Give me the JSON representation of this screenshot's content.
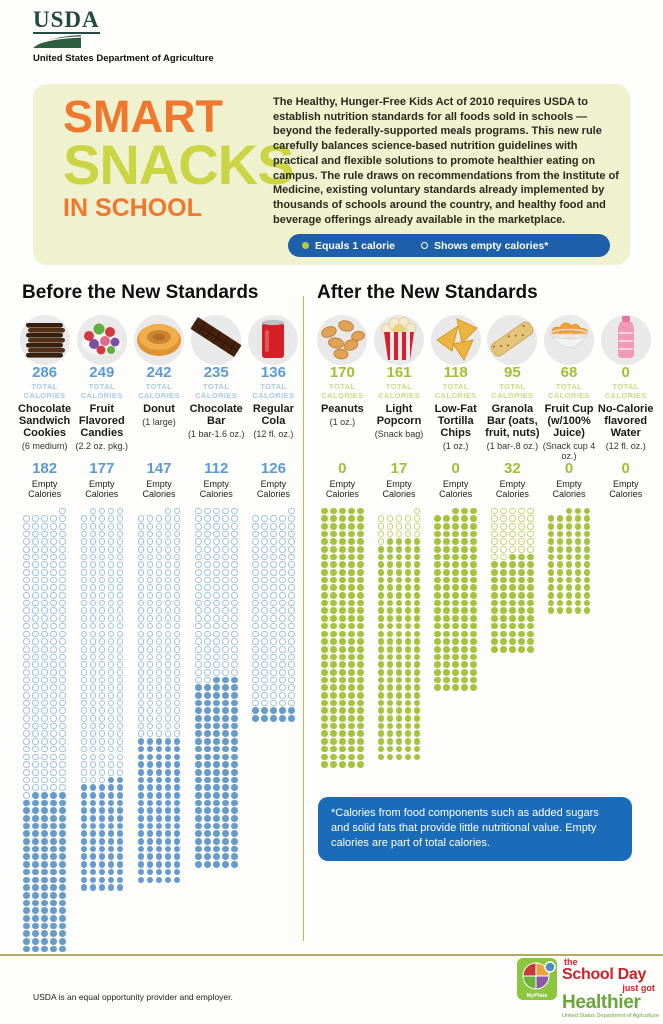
{
  "usda": {
    "wordmark": "USDA",
    "tagline": "United States Department of Agriculture"
  },
  "header": {
    "title_line1": "SMART",
    "title_line2": "SNACKS",
    "title_line3": "IN SCHOOL",
    "intro": "The Healthy, Hunger-Free Kids Act of 2010 requires USDA to establish nutrition standards for all foods sold in schools — beyond the federally-supported meals programs. This new rule carefully balances science-based nutrition guidelines with practical and flexible solutions to promote healthier eating on campus. The rule draws on recommendations from the Institute of Medicine, existing voluntary standards already implemented by thousands of schools around the country, and healthy food and beverage offerings already available in the marketplace.",
    "legend": {
      "filled_label": "Equals 1 calorie",
      "open_label": "Shows empty calories*"
    }
  },
  "sections": [
    {
      "id": "before",
      "heading": "Before the New Standards",
      "total_label_lines": [
        "TOTAL",
        "CALORIES"
      ],
      "empty_label_lines": [
        "Empty",
        "Calories"
      ],
      "colors": {
        "value": "#5b9bd5",
        "label": "#a9c9e7",
        "dot_fill": "#669bcd",
        "dot_open_border": "#9fc0dc"
      },
      "items": [
        {
          "icon": "cookies-icon",
          "total": 286,
          "name": "Chocolate Sandwich Cookies",
          "size": "(6 medium)",
          "empty": 182
        },
        {
          "icon": "candies-icon",
          "total": 249,
          "name": "Fruit Flavored Candies",
          "size": "(2.2 oz. pkg.)",
          "empty": 177
        },
        {
          "icon": "donut-icon",
          "total": 242,
          "name": "Donut",
          "size": "(1 large)",
          "empty": 147
        },
        {
          "icon": "chocolate-bar-icon",
          "total": 235,
          "name": "Chocolate Bar",
          "size": "(1 bar-1.6 oz.)",
          "empty": 112
        },
        {
          "icon": "cola-can-icon",
          "total": 136,
          "name": "Regular Cola",
          "size": "(12 fl. oz.)",
          "empty": 126
        }
      ]
    },
    {
      "id": "after",
      "heading": "After the New Standards",
      "total_label_lines": [
        "TOTAL",
        "CALORIES"
      ],
      "empty_label_lines": [
        "Empty",
        "Calories"
      ],
      "colors": {
        "value": "#a3bf34",
        "label": "#cdda8a",
        "dot_fill": "#a5c33d",
        "dot_open_border": "#c2d46e"
      },
      "items": [
        {
          "icon": "peanuts-icon",
          "total": 170,
          "name": "Peanuts",
          "size": "(1 oz.)",
          "empty": 0
        },
        {
          "icon": "popcorn-icon",
          "total": 161,
          "name": "Light Popcorn",
          "size": "(Snack bag)",
          "empty": 17
        },
        {
          "icon": "tortilla-chips-icon",
          "total": 118,
          "name": "Low-Fat Tortilla Chips",
          "size": "(1 oz.)",
          "empty": 0
        },
        {
          "icon": "granola-bar-icon",
          "total": 95,
          "name": "Granola Bar (oats, fruit, nuts)",
          "size": "(1 bar-.8 oz.)",
          "empty": 32
        },
        {
          "icon": "fruit-cup-icon",
          "total": 68,
          "name": "Fruit Cup (w/100% Juice)",
          "size": "(Snack cup 4 oz.)",
          "empty": 0
        },
        {
          "icon": "water-bottle-icon",
          "total": 0,
          "name": "No-Calorie flavored Water",
          "size": "(12 fl. oz.)",
          "empty": 0
        }
      ]
    }
  ],
  "footnote": {
    "text": "*Calories from food components such as added sugars and solid fats that provide little nutritional value. Empty calories are part of total calories."
  },
  "footer": {
    "disclaimer": "USDA is an equal opportunity provider and employer."
  },
  "branding": {
    "the": "the",
    "school_day": "School Day",
    "just_got": "just got",
    "healthier": "Healthier",
    "usda_small": "United States Department of Agriculture",
    "myplate_label": "MyPlate"
  },
  "colors": {
    "header_bg": "#eff1cf",
    "title_orange": "#f0782e",
    "title_lime": "#cbd544",
    "legend_pill_blue": "#1d5fa9",
    "footnote_blue": "#1b6cb8",
    "divider_orange": "#e8a558",
    "footer_rule_tan": "#bba963"
  },
  "chart_data": {
    "type": "bar",
    "subtype": "unit-pictogram",
    "unit": "1 dot = 1 calorie, 5 dots per row; empty calories drawn as open circles at the top of each column",
    "dots_per_row": 5,
    "groups": [
      {
        "title": "Before the New Standards",
        "categories": [
          "Chocolate Sandwich Cookies (6 medium)",
          "Fruit Flavored Candies (2.2 oz. pkg.)",
          "Donut (1 large)",
          "Chocolate Bar (1 bar-1.6 oz.)",
          "Regular Cola (12 fl. oz.)"
        ],
        "series": [
          {
            "name": "Total Calories",
            "values": [
              286,
              249,
              242,
              235,
              136
            ]
          },
          {
            "name": "Empty Calories",
            "values": [
              182,
              177,
              147,
              112,
              126
            ]
          }
        ]
      },
      {
        "title": "After the New Standards",
        "categories": [
          "Peanuts (1 oz.)",
          "Light Popcorn (Snack bag)",
          "Low-Fat Tortilla Chips (1 oz.)",
          "Granola Bar (oats, fruit, nuts) (1 bar-.8 oz.)",
          "Fruit Cup (w/100% Juice) (Snack cup 4 oz.)",
          "No-Calorie flavored Water (12 fl. oz.)"
        ],
        "series": [
          {
            "name": "Total Calories",
            "values": [
              170,
              161,
              118,
              95,
              68,
              0
            ]
          },
          {
            "name": "Empty Calories",
            "values": [
              0,
              17,
              0,
              32,
              0,
              0
            ]
          }
        ]
      }
    ],
    "legend": [
      "Equals 1 calorie",
      "Shows empty calories*"
    ],
    "legend_position": "top"
  }
}
